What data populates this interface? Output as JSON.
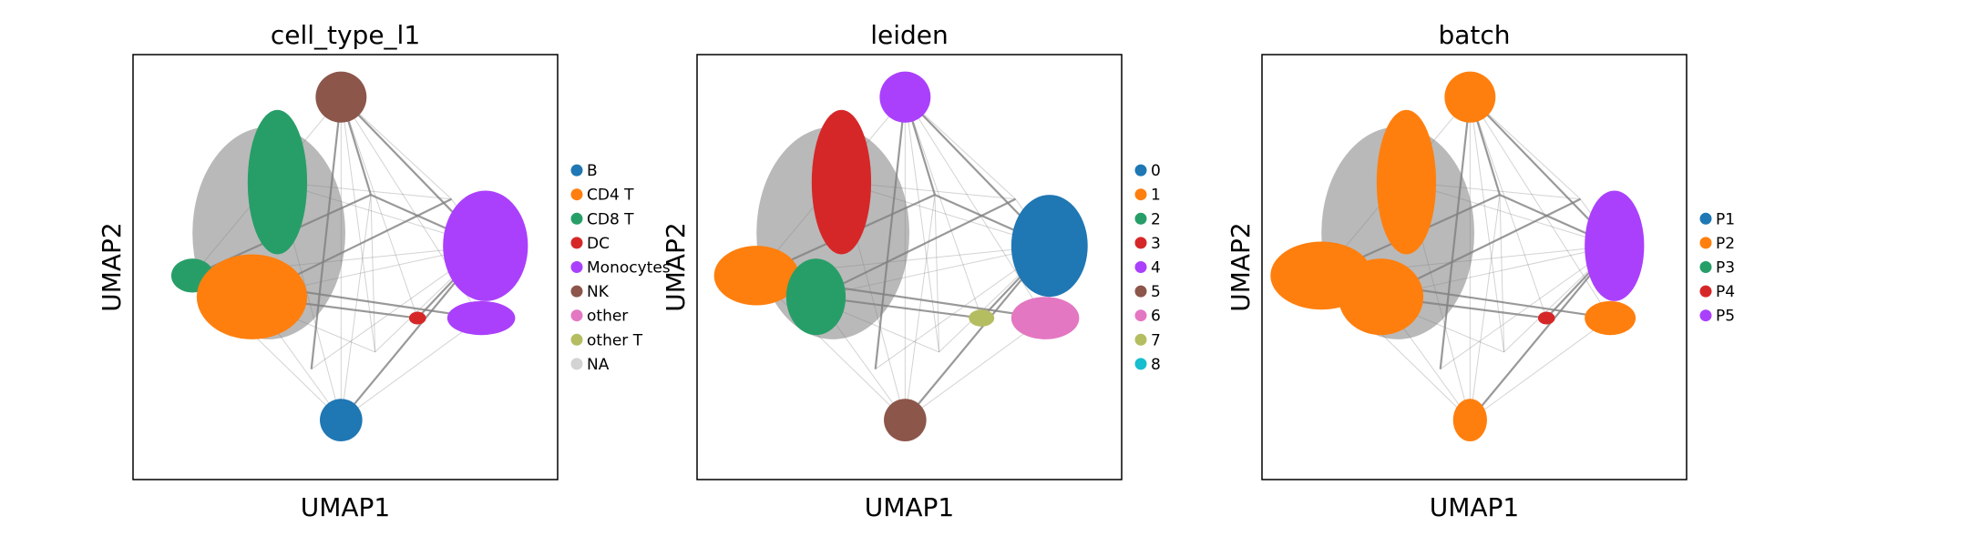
{
  "chart_data": [
    {
      "type": "scatter",
      "title": "cell_type_l1",
      "xlabel": "UMAP1",
      "ylabel": "UMAP2",
      "grid": false,
      "ticks": false,
      "legend_position": "right",
      "legend": [
        {
          "label": "B",
          "color": "#1f77b4"
        },
        {
          "label": "CD4 T",
          "color": "#ff7f0e"
        },
        {
          "label": "CD8 T",
          "color": "#279e68"
        },
        {
          "label": "DC",
          "color": "#d62728"
        },
        {
          "label": "Monocytes",
          "color": "#aa40fc"
        },
        {
          "label": "NK",
          "color": "#8c564b"
        },
        {
          "label": "other",
          "color": "#e377c2"
        },
        {
          "label": "other T",
          "color": "#b5bd61"
        },
        {
          "label": "NA",
          "color": "#d3d3d3"
        }
      ]
    },
    {
      "type": "scatter",
      "title": "leiden",
      "xlabel": "UMAP1",
      "ylabel": "UMAP2",
      "grid": false,
      "ticks": false,
      "legend_position": "right",
      "legend": [
        {
          "label": "0",
          "color": "#1f77b4"
        },
        {
          "label": "1",
          "color": "#ff7f0e"
        },
        {
          "label": "2",
          "color": "#279e68"
        },
        {
          "label": "3",
          "color": "#d62728"
        },
        {
          "label": "4",
          "color": "#aa40fc"
        },
        {
          "label": "5",
          "color": "#8c564b"
        },
        {
          "label": "6",
          "color": "#e377c2"
        },
        {
          "label": "7",
          "color": "#b5bd61"
        },
        {
          "label": "8",
          "color": "#17becf"
        }
      ]
    },
    {
      "type": "scatter",
      "title": "batch",
      "xlabel": "UMAP1",
      "ylabel": "UMAP2",
      "grid": false,
      "ticks": false,
      "legend_position": "right",
      "legend": [
        {
          "label": "P1",
          "color": "#1f77b4"
        },
        {
          "label": "P2",
          "color": "#ff7f0e"
        },
        {
          "label": "P3",
          "color": "#279e68"
        },
        {
          "label": "P4",
          "color": "#d62728"
        },
        {
          "label": "P5",
          "color": "#aa40fc"
        }
      ]
    }
  ],
  "colors": {
    "edge": "#808080",
    "frame": "#000000"
  }
}
